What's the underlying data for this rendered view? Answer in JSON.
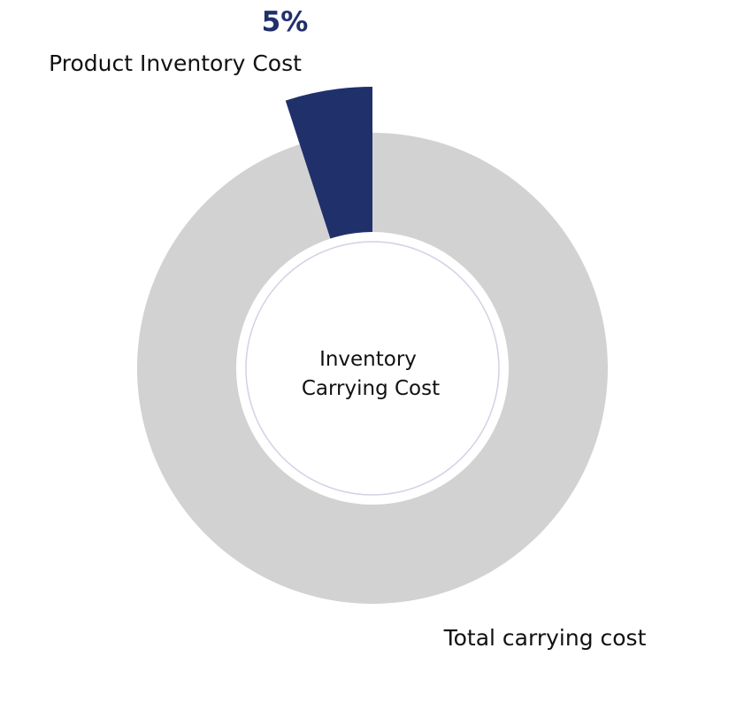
{
  "chart_data": {
    "type": "pie",
    "center_label": [
      "Inventory",
      "Carrying Cost"
    ],
    "slices": [
      {
        "name": "Product Inventory Cost",
        "value": 5,
        "value_label": "5%",
        "color": "#20306B",
        "highlighted": true
      },
      {
        "name": "Total carrying cost",
        "value": 95,
        "color": "#D2D2D2",
        "highlighted": false
      }
    ]
  },
  "colors": {
    "background": "#FFFFFF",
    "center_ring": "#D0D2E4",
    "text": "#111111",
    "accent": "#20306B"
  }
}
